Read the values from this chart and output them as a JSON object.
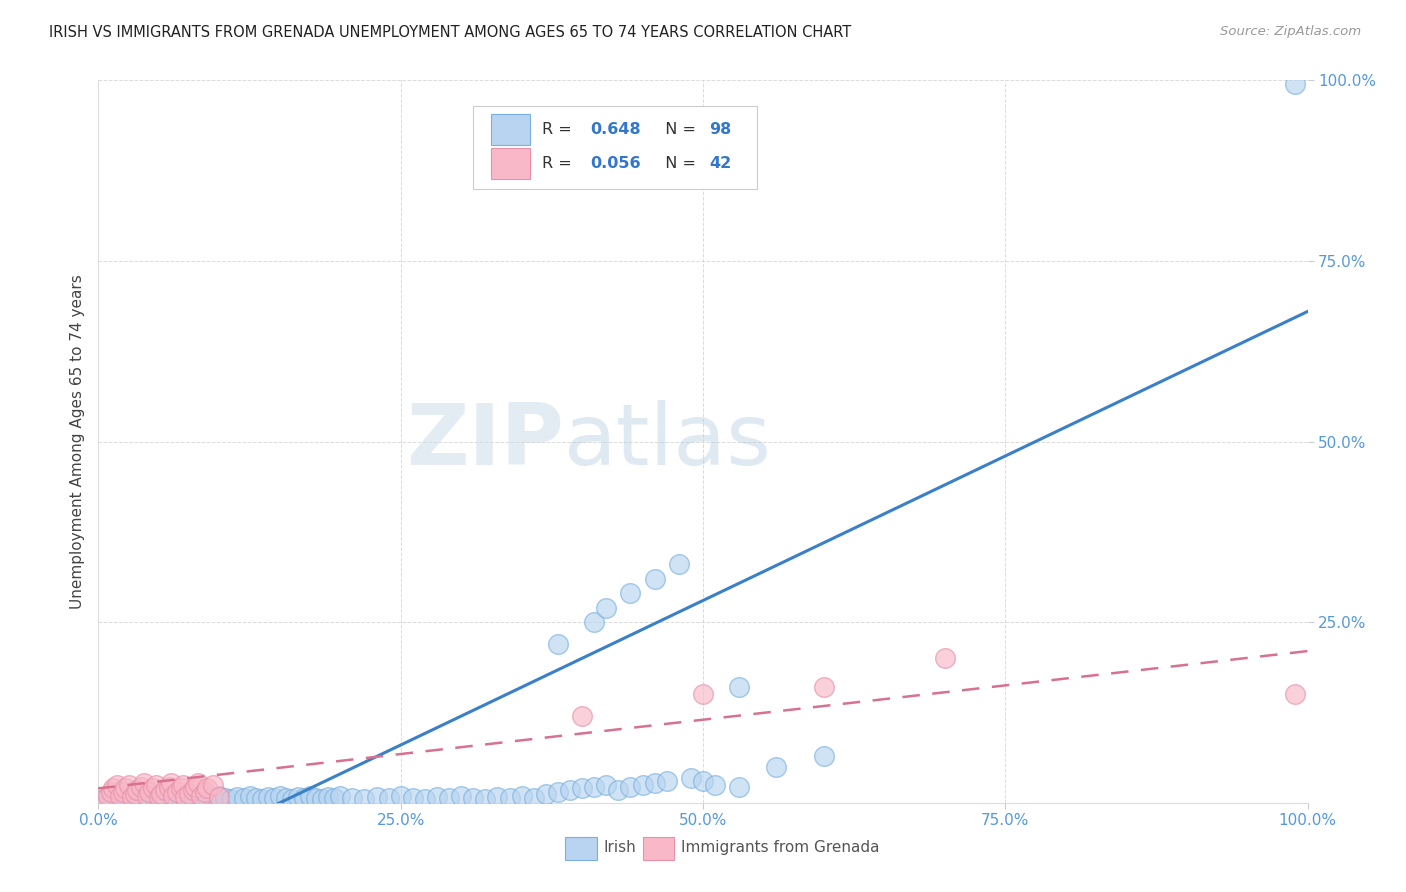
{
  "title": "IRISH VS IMMIGRANTS FROM GRENADA UNEMPLOYMENT AMONG AGES 65 TO 74 YEARS CORRELATION CHART",
  "source": "Source: ZipAtlas.com",
  "ylabel": "Unemployment Among Ages 65 to 74 years",
  "xlim": [
    0.0,
    1.0
  ],
  "ylim": [
    0.0,
    1.0
  ],
  "xticks": [
    0.0,
    0.25,
    0.5,
    0.75,
    1.0
  ],
  "xticklabels": [
    "0.0%",
    "25.0%",
    "50.0%",
    "75.0%",
    "100.0%"
  ],
  "yticks": [
    0.25,
    0.5,
    0.75,
    1.0
  ],
  "yticklabels": [
    "25.0%",
    "50.0%",
    "75.0%",
    "100.0%"
  ],
  "irish_R": 0.648,
  "irish_N": 98,
  "grenada_R": 0.056,
  "grenada_N": 42,
  "irish_color": "#b8d4f0",
  "irish_edge_color": "#7ab0e0",
  "irish_line_color": "#3a80c8",
  "grenada_color": "#f8b8c8",
  "grenada_edge_color": "#e890a8",
  "grenada_line_color": "#d87090",
  "watermark_color": "#ccd8e8",
  "background_color": "#ffffff",
  "grid_color": "#cccccc",
  "title_color": "#222222",
  "axis_label_color": "#444444",
  "tick_color": "#5599dd",
  "legend_color": "#3377cc",
  "irish_x": [
    0.005,
    0.008,
    0.01,
    0.012,
    0.015,
    0.018,
    0.02,
    0.022,
    0.025,
    0.028,
    0.03,
    0.032,
    0.035,
    0.038,
    0.04,
    0.042,
    0.045,
    0.048,
    0.05,
    0.052,
    0.055,
    0.058,
    0.06,
    0.062,
    0.065,
    0.068,
    0.07,
    0.072,
    0.075,
    0.078,
    0.08,
    0.082,
    0.085,
    0.088,
    0.09,
    0.095,
    0.1,
    0.105,
    0.11,
    0.115,
    0.12,
    0.125,
    0.13,
    0.135,
    0.14,
    0.145,
    0.15,
    0.155,
    0.16,
    0.165,
    0.17,
    0.175,
    0.18,
    0.185,
    0.19,
    0.195,
    0.2,
    0.21,
    0.22,
    0.23,
    0.24,
    0.25,
    0.26,
    0.27,
    0.28,
    0.29,
    0.3,
    0.31,
    0.32,
    0.33,
    0.34,
    0.35,
    0.36,
    0.37,
    0.38,
    0.39,
    0.4,
    0.41,
    0.42,
    0.43,
    0.44,
    0.45,
    0.46,
    0.47,
    0.49,
    0.5,
    0.51,
    0.53,
    0.56,
    0.6,
    0.38,
    0.41,
    0.42,
    0.44,
    0.46,
    0.48,
    0.53,
    0.99
  ],
  "irish_y": [
    0.005,
    0.008,
    0.01,
    0.005,
    0.008,
    0.006,
    0.01,
    0.007,
    0.005,
    0.008,
    0.006,
    0.01,
    0.007,
    0.005,
    0.008,
    0.006,
    0.01,
    0.007,
    0.005,
    0.008,
    0.006,
    0.01,
    0.007,
    0.005,
    0.008,
    0.006,
    0.01,
    0.007,
    0.005,
    0.008,
    0.006,
    0.01,
    0.007,
    0.005,
    0.008,
    0.006,
    0.01,
    0.007,
    0.005,
    0.008,
    0.006,
    0.01,
    0.007,
    0.005,
    0.008,
    0.006,
    0.01,
    0.007,
    0.005,
    0.008,
    0.006,
    0.01,
    0.007,
    0.005,
    0.008,
    0.006,
    0.01,
    0.007,
    0.005,
    0.008,
    0.006,
    0.01,
    0.007,
    0.005,
    0.008,
    0.006,
    0.01,
    0.007,
    0.005,
    0.008,
    0.006,
    0.01,
    0.007,
    0.012,
    0.015,
    0.018,
    0.02,
    0.022,
    0.025,
    0.018,
    0.022,
    0.025,
    0.028,
    0.03,
    0.035,
    0.03,
    0.025,
    0.022,
    0.05,
    0.065,
    0.22,
    0.25,
    0.27,
    0.29,
    0.31,
    0.33,
    0.16,
    0.995
  ],
  "grenada_x": [
    0.005,
    0.008,
    0.01,
    0.012,
    0.015,
    0.018,
    0.02,
    0.022,
    0.025,
    0.028,
    0.03,
    0.032,
    0.035,
    0.038,
    0.04,
    0.042,
    0.045,
    0.048,
    0.05,
    0.052,
    0.055,
    0.058,
    0.06,
    0.062,
    0.065,
    0.068,
    0.07,
    0.072,
    0.075,
    0.078,
    0.08,
    0.082,
    0.085,
    0.088,
    0.09,
    0.095,
    0.1,
    0.4,
    0.5,
    0.6,
    0.7,
    0.99
  ],
  "grenada_y": [
    0.005,
    0.01,
    0.015,
    0.02,
    0.025,
    0.01,
    0.015,
    0.02,
    0.025,
    0.008,
    0.012,
    0.018,
    0.022,
    0.028,
    0.01,
    0.015,
    0.02,
    0.025,
    0.008,
    0.012,
    0.018,
    0.022,
    0.028,
    0.01,
    0.015,
    0.02,
    0.025,
    0.008,
    0.012,
    0.018,
    0.022,
    0.028,
    0.01,
    0.015,
    0.02,
    0.025,
    0.008,
    0.12,
    0.15,
    0.16,
    0.2,
    0.15
  ]
}
